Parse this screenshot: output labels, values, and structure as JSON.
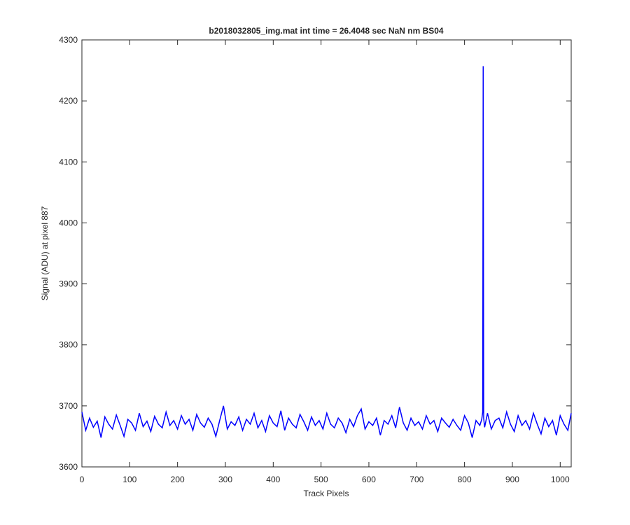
{
  "chart_data": {
    "type": "line",
    "title": "b2018032805_img.mat int time = 26.4048 sec  NaN nm BS04",
    "x_label": "Track Pixels",
    "y_label": "Signal (ADU) at pixel 887",
    "x": [
      0,
      8,
      16,
      24,
      32,
      40,
      48,
      56,
      64,
      72,
      80,
      88,
      96,
      104,
      112,
      120,
      128,
      136,
      144,
      152,
      160,
      168,
      176,
      184,
      192,
      200,
      208,
      216,
      224,
      232,
      240,
      248,
      256,
      264,
      272,
      280,
      288,
      296,
      304,
      312,
      320,
      328,
      336,
      344,
      352,
      360,
      368,
      376,
      384,
      392,
      400,
      408,
      416,
      424,
      432,
      440,
      448,
      456,
      464,
      472,
      480,
      488,
      496,
      504,
      512,
      520,
      528,
      536,
      544,
      552,
      560,
      568,
      576,
      584,
      592,
      600,
      608,
      616,
      624,
      632,
      640,
      648,
      656,
      664,
      672,
      680,
      688,
      696,
      704,
      712,
      720,
      728,
      736,
      744,
      752,
      760,
      768,
      776,
      784,
      792,
      800,
      808,
      816,
      824,
      832,
      836,
      838,
      839,
      840,
      842,
      848,
      856,
      864,
      872,
      880,
      888,
      896,
      904,
      912,
      920,
      928,
      936,
      944,
      952,
      960,
      968,
      976,
      984,
      992,
      1000,
      1008,
      1016,
      1023
    ],
    "series": [
      {
        "color": "#0000ff",
        "values": [
          3690,
          3660,
          3680,
          3665,
          3675,
          3648,
          3682,
          3670,
          3662,
          3685,
          3668,
          3650,
          3678,
          3672,
          3660,
          3688,
          3666,
          3675,
          3658,
          3683,
          3670,
          3664,
          3690,
          3668,
          3676,
          3662,
          3684,
          3670,
          3678,
          3660,
          3686,
          3672,
          3665,
          3680,
          3670,
          3650,
          3676,
          3700,
          3662,
          3674,
          3668,
          3682,
          3660,
          3678,
          3670,
          3688,
          3664,
          3676,
          3658,
          3684,
          3672,
          3666,
          3692,
          3660,
          3680,
          3670,
          3664,
          3686,
          3674,
          3660,
          3682,
          3668,
          3676,
          3662,
          3688,
          3670,
          3664,
          3680,
          3672,
          3656,
          3678,
          3666,
          3684,
          3695,
          3662,
          3674,
          3668,
          3680,
          3652,
          3676,
          3670,
          3684,
          3664,
          3698,
          3672,
          3660,
          3680,
          3668,
          3674,
          3662,
          3684,
          3670,
          3676,
          3658,
          3680,
          3672,
          3665,
          3678,
          3668,
          3660,
          3684,
          3672,
          3648,
          3676,
          3668,
          3678,
          3690,
          4257,
          3680,
          3665,
          3688,
          3662,
          3676,
          3680,
          3664,
          3690,
          3670,
          3658,
          3684,
          3668,
          3676,
          3662,
          3688,
          3670,
          3654,
          3680,
          3666,
          3676,
          3652,
          3684,
          3670,
          3660,
          3688
        ]
      }
    ],
    "xlim": [
      0,
      1023
    ],
    "xticks": [
      0,
      100,
      200,
      300,
      400,
      500,
      600,
      700,
      800,
      900,
      1000
    ],
    "ylim": [
      3600,
      4300
    ],
    "yticks": [
      3600,
      3700,
      3800,
      3900,
      4000,
      4100,
      4200,
      4300
    ]
  }
}
